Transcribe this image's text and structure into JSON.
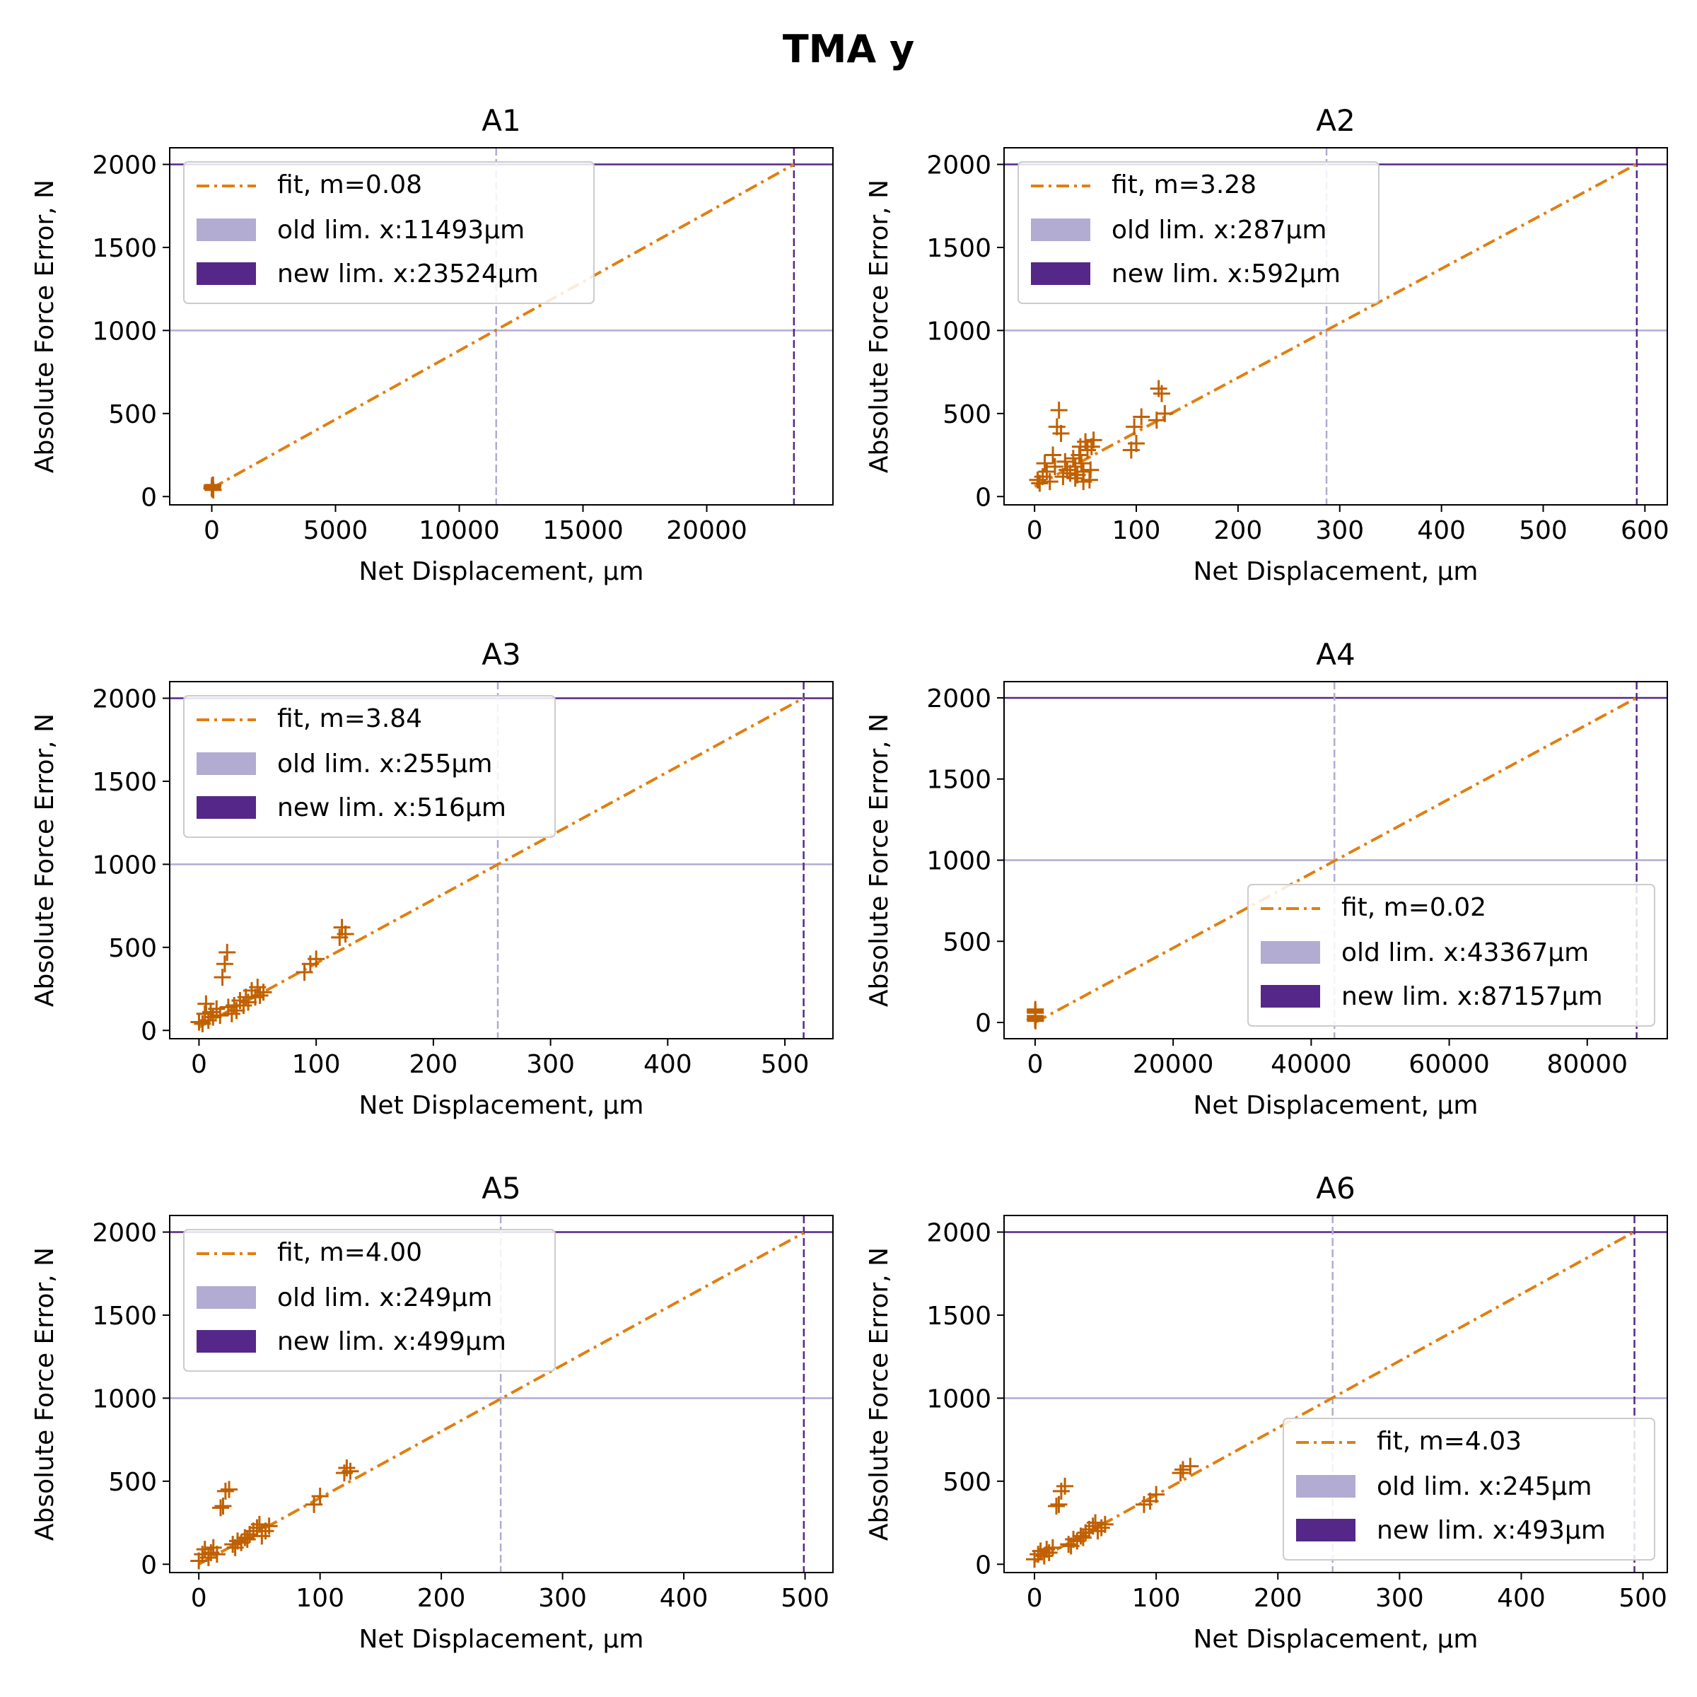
{
  "figure": {
    "title": "TMA y"
  },
  "colors": {
    "fit": "#e07f10",
    "points": "#c06000",
    "old_limit": "#b2abd2",
    "new_limit": "#542788",
    "axis": "#000000"
  },
  "chart_data": [
    {
      "type": "scatter",
      "title": "A1",
      "xlabel": "Net Displacement, μm",
      "ylabel": "Absolute Force Error, N",
      "xlim": [
        -1700,
        25100
      ],
      "ylim": [
        -50,
        2100
      ],
      "xticks": [
        0,
        5000,
        10000,
        15000,
        20000
      ],
      "yticks": [
        0,
        500,
        1000,
        1500,
        2000
      ],
      "fit": {
        "label": "fit, m=0.08",
        "intercept": 50,
        "slope": 0.0829
      },
      "old_limit": {
        "label": "old lim. x:11493μm",
        "x": 11493,
        "y": 1000
      },
      "new_limit": {
        "label": "new lim. x:23524μm",
        "x": 23524,
        "y": 2000
      },
      "legend_position": "top-left",
      "points": [
        [
          0,
          50
        ],
        [
          20,
          55
        ],
        [
          40,
          60
        ],
        [
          30,
          45
        ],
        [
          50,
          70
        ],
        [
          10,
          65
        ],
        [
          60,
          40
        ]
      ]
    },
    {
      "type": "scatter",
      "title": "A2",
      "xlabel": "Net Displacement, μm",
      "ylabel": "Absolute Force Error, N",
      "xlim": [
        -30,
        622
      ],
      "ylim": [
        -50,
        2100
      ],
      "xticks": [
        0,
        100,
        200,
        300,
        400,
        500,
        600
      ],
      "yticks": [
        0,
        500,
        1000,
        1500,
        2000
      ],
      "fit": {
        "label": "fit, m=3.28",
        "intercept": 60,
        "slope": 3.28
      },
      "old_limit": {
        "label": "old lim. x:287μm",
        "x": 287,
        "y": 1000
      },
      "new_limit": {
        "label": "new lim. x:592μm",
        "x": 592,
        "y": 2000
      },
      "legend_position": "top-left",
      "points": [
        [
          3,
          100
        ],
        [
          5,
          80
        ],
        [
          8,
          120
        ],
        [
          10,
          200
        ],
        [
          12,
          150
        ],
        [
          15,
          90
        ],
        [
          18,
          250
        ],
        [
          20,
          180
        ],
        [
          22,
          420
        ],
        [
          24,
          520
        ],
        [
          26,
          380
        ],
        [
          28,
          120
        ],
        [
          30,
          210
        ],
        [
          32,
          160
        ],
        [
          35,
          140
        ],
        [
          38,
          230
        ],
        [
          40,
          180
        ],
        [
          42,
          130
        ],
        [
          44,
          250
        ],
        [
          45,
          300
        ],
        [
          46,
          200
        ],
        [
          48,
          150
        ],
        [
          50,
          330
        ],
        [
          52,
          280
        ],
        [
          54,
          100
        ],
        [
          55,
          160
        ],
        [
          56,
          300
        ],
        [
          58,
          340
        ],
        [
          48,
          90
        ],
        [
          40,
          110
        ],
        [
          95,
          280
        ],
        [
          100,
          320
        ],
        [
          98,
          420
        ],
        [
          105,
          480
        ],
        [
          120,
          460
        ],
        [
          122,
          650
        ],
        [
          125,
          620
        ],
        [
          128,
          500
        ]
      ]
    },
    {
      "type": "scatter",
      "title": "A3",
      "xlabel": "Net Displacement, μm",
      "ylabel": "Absolute Force Error, N",
      "xlim": [
        -25,
        541
      ],
      "ylim": [
        -50,
        2100
      ],
      "xticks": [
        0,
        100,
        200,
        300,
        400,
        500
      ],
      "yticks": [
        0,
        500,
        1000,
        1500,
        2000
      ],
      "fit": {
        "label": "fit, m=3.84",
        "intercept": 20,
        "slope": 3.84
      },
      "old_limit": {
        "label": "old lim. x:255μm",
        "x": 255,
        "y": 1000
      },
      "new_limit": {
        "label": "new lim. x:516μm",
        "x": 516,
        "y": 2000
      },
      "legend_position": "top-left",
      "points": [
        [
          0,
          50
        ],
        [
          3,
          40
        ],
        [
          5,
          100
        ],
        [
          6,
          160
        ],
        [
          8,
          60
        ],
        [
          10,
          110
        ],
        [
          12,
          80
        ],
        [
          15,
          130
        ],
        [
          18,
          90
        ],
        [
          20,
          320
        ],
        [
          22,
          400
        ],
        [
          24,
          470
        ],
        [
          25,
          140
        ],
        [
          28,
          100
        ],
        [
          30,
          150
        ],
        [
          32,
          120
        ],
        [
          35,
          180
        ],
        [
          38,
          150
        ],
        [
          40,
          200
        ],
        [
          42,
          170
        ],
        [
          45,
          240
        ],
        [
          48,
          200
        ],
        [
          50,
          260
        ],
        [
          52,
          210
        ],
        [
          55,
          230
        ],
        [
          90,
          350
        ],
        [
          95,
          400
        ],
        [
          100,
          430
        ],
        [
          120,
          560
        ],
        [
          122,
          620
        ],
        [
          125,
          580
        ]
      ]
    },
    {
      "type": "scatter",
      "title": "A4",
      "xlabel": "Net Displacement, μm",
      "ylabel": "Absolute Force Error, N",
      "xlim": [
        -4500,
        91600
      ],
      "ylim": [
        -100,
        2100
      ],
      "xticks": [
        0,
        20000,
        40000,
        60000,
        80000
      ],
      "yticks": [
        0,
        500,
        1000,
        1500,
        2000
      ],
      "fit": {
        "label": "fit, m=0.02",
        "intercept": 0,
        "slope": 0.02295
      },
      "old_limit": {
        "label": "old lim. x:43367μm",
        "x": 43367,
        "y": 1000
      },
      "new_limit": {
        "label": "new lim. x:87157μm",
        "x": 87157,
        "y": 2000
      },
      "legend_position": "lower-right",
      "points": [
        [
          0,
          20
        ],
        [
          20,
          40
        ],
        [
          40,
          60
        ],
        [
          30,
          80
        ],
        [
          50,
          10
        ],
        [
          10,
          70
        ],
        [
          60,
          30
        ]
      ]
    },
    {
      "type": "scatter",
      "title": "A5",
      "xlabel": "Net Displacement, μm",
      "ylabel": "Absolute Force Error, N",
      "xlim": [
        -24,
        523
      ],
      "ylim": [
        -50,
        2100
      ],
      "xticks": [
        0,
        100,
        200,
        300,
        400,
        500
      ],
      "yticks": [
        0,
        500,
        1000,
        1500,
        2000
      ],
      "fit": {
        "label": "fit, m=4.00",
        "intercept": 0,
        "slope": 4.0
      },
      "old_limit": {
        "label": "old lim. x:249μm",
        "x": 249,
        "y": 1000
      },
      "new_limit": {
        "label": "new lim. x:499μm",
        "x": 499,
        "y": 2000
      },
      "legend_position": "top-left",
      "points": [
        [
          0,
          20
        ],
        [
          3,
          60
        ],
        [
          5,
          90
        ],
        [
          8,
          40
        ],
        [
          10,
          70
        ],
        [
          12,
          100
        ],
        [
          15,
          60
        ],
        [
          18,
          340
        ],
        [
          20,
          350
        ],
        [
          22,
          440
        ],
        [
          25,
          450
        ],
        [
          28,
          120
        ],
        [
          30,
          100
        ],
        [
          32,
          140
        ],
        [
          35,
          130
        ],
        [
          38,
          160
        ],
        [
          40,
          150
        ],
        [
          42,
          180
        ],
        [
          45,
          200
        ],
        [
          48,
          220
        ],
        [
          50,
          240
        ],
        [
          52,
          170
        ],
        [
          55,
          200
        ],
        [
          58,
          230
        ],
        [
          95,
          360
        ],
        [
          100,
          410
        ],
        [
          120,
          550
        ],
        [
          122,
          580
        ],
        [
          125,
          560
        ]
      ]
    },
    {
      "type": "scatter",
      "title": "A6",
      "xlabel": "Net Displacement, μm",
      "ylabel": "Absolute Force Error, N",
      "xlim": [
        -25,
        520
      ],
      "ylim": [
        -50,
        2100
      ],
      "xticks": [
        0,
        100,
        200,
        300,
        400,
        500
      ],
      "yticks": [
        0,
        500,
        1000,
        1500,
        2000
      ],
      "fit": {
        "label": "fit, m=4.03",
        "intercept": 15,
        "slope": 4.03
      },
      "old_limit": {
        "label": "old lim. x:245μm",
        "x": 245,
        "y": 1000
      },
      "new_limit": {
        "label": "new lim. x:493μm",
        "x": 493,
        "y": 2000
      },
      "legend_position": "lower-right",
      "points": [
        [
          0,
          30
        ],
        [
          3,
          60
        ],
        [
          5,
          80
        ],
        [
          8,
          50
        ],
        [
          10,
          90
        ],
        [
          12,
          70
        ],
        [
          15,
          100
        ],
        [
          18,
          350
        ],
        [
          20,
          360
        ],
        [
          22,
          440
        ],
        [
          25,
          470
        ],
        [
          28,
          120
        ],
        [
          30,
          110
        ],
        [
          32,
          150
        ],
        [
          35,
          140
        ],
        [
          38,
          170
        ],
        [
          40,
          160
        ],
        [
          42,
          190
        ],
        [
          45,
          210
        ],
        [
          48,
          230
        ],
        [
          50,
          250
        ],
        [
          52,
          200
        ],
        [
          55,
          220
        ],
        [
          58,
          240
        ],
        [
          90,
          360
        ],
        [
          95,
          380
        ],
        [
          100,
          420
        ],
        [
          120,
          550
        ],
        [
          122,
          570
        ],
        [
          128,
          590
        ]
      ]
    }
  ]
}
